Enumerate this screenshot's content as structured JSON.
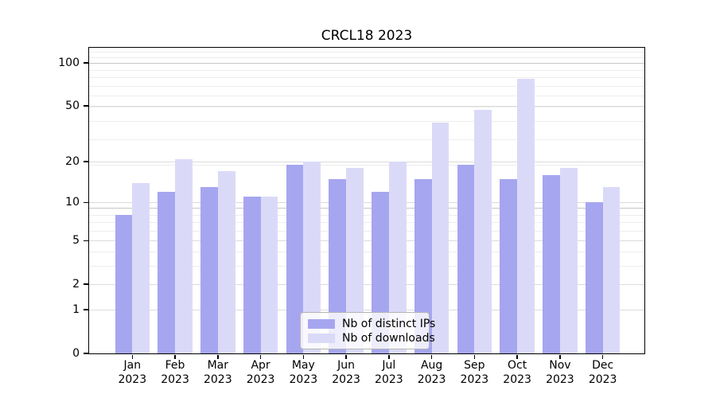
{
  "title": "CRCL18 2023",
  "legend": {
    "items": [
      {
        "label": "Nb of distinct IPs",
        "color": "#a6a6f0"
      },
      {
        "label": "Nb of downloads",
        "color": "#dadaf8"
      }
    ]
  },
  "axes": {
    "months": [
      "Jan",
      "Feb",
      "Mar",
      "Apr",
      "May",
      "Jun",
      "Jul",
      "Aug",
      "Sep",
      "Oct",
      "Nov",
      "Dec"
    ],
    "year": "2023",
    "y_tick_values": [
      100,
      50,
      20,
      10,
      5,
      2,
      1,
      0
    ]
  },
  "chart_data": {
    "type": "bar",
    "title": "CRCL18 2023",
    "categories": [
      "Jan 2023",
      "Feb 2023",
      "Mar 2023",
      "Apr 2023",
      "May 2023",
      "Jun 2023",
      "Jul 2023",
      "Aug 2023",
      "Sep 2023",
      "Oct 2023",
      "Nov 2023",
      "Dec 2023"
    ],
    "series": [
      {
        "name": "Nb of distinct IPs",
        "color": "#a6a6f0",
        "values": [
          8,
          12,
          13,
          11,
          19,
          15,
          12,
          15,
          19,
          15,
          16,
          10
        ]
      },
      {
        "name": "Nb of downloads",
        "color": "#dadaf8",
        "values": [
          14,
          21,
          17,
          11,
          20,
          18,
          20,
          38,
          47,
          77,
          18,
          13
        ]
      }
    ],
    "yscale": "log1p",
    "y_ticks": [
      0,
      1,
      2,
      5,
      10,
      20,
      50,
      100
    ],
    "ylim": [
      0,
      127.5
    ],
    "grid": true,
    "legend_position": "lower-center",
    "grid_colors": {
      "minor": "#ededed",
      "tick": "#dcdcdc",
      "major": "#c6c6c6"
    }
  }
}
